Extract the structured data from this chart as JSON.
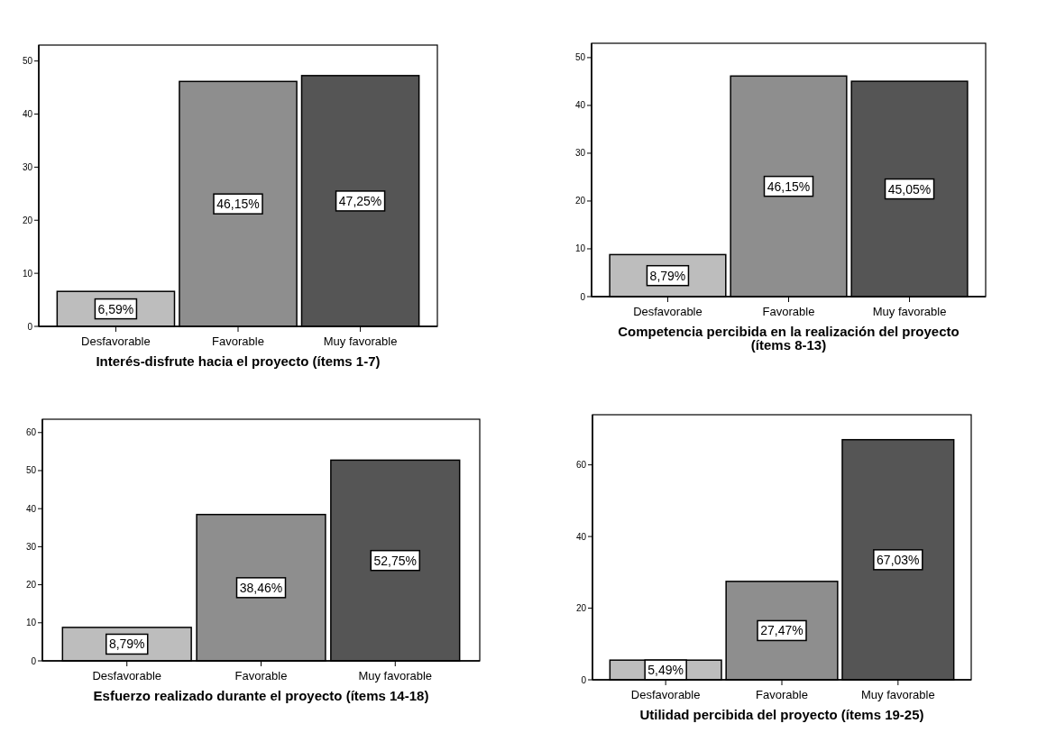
{
  "chart_data": [
    {
      "type": "bar",
      "xlabel": "Interés-disfrute hacia el proyecto (ítems 1-7)",
      "categories": [
        "Desfavorable",
        "Favorable",
        "Muy favorable"
      ],
      "values": [
        6.59,
        46.15,
        47.25
      ],
      "colors": [
        "#bdbdbd",
        "#8e8e8e",
        "#555555"
      ],
      "value_labels": [
        "6,59%",
        "46,15%",
        "47,25%"
      ],
      "ylim": [
        0,
        53
      ],
      "yticks": [
        0,
        10,
        20,
        30,
        40,
        50
      ]
    },
    {
      "type": "bar",
      "xlabel": "Competencia percibida en la realización del proyecto (ítems 8-13)",
      "categories": [
        "Desfavorable",
        "Favorable",
        "Muy favorable"
      ],
      "values": [
        8.79,
        46.15,
        45.05
      ],
      "colors": [
        "#bdbdbd",
        "#8e8e8e",
        "#555555"
      ],
      "value_labels": [
        "8,79%",
        "46,15%",
        "45,05%"
      ],
      "ylim": [
        0,
        53
      ],
      "yticks": [
        0,
        10,
        20,
        30,
        40,
        50
      ]
    },
    {
      "type": "bar",
      "xlabel": "Esfuerzo realizado durante el proyecto (ítems 14-18)",
      "categories": [
        "Desfavorable",
        "Favorable",
        "Muy favorable"
      ],
      "values": [
        8.79,
        38.46,
        52.75
      ],
      "colors": [
        "#bdbdbd",
        "#8e8e8e",
        "#555555"
      ],
      "value_labels": [
        "8,79%",
        "38,46%",
        "52,75%"
      ],
      "ylim": [
        0,
        63.5
      ],
      "yticks": [
        0,
        10,
        20,
        30,
        40,
        50,
        60
      ]
    },
    {
      "type": "bar",
      "xlabel": "Utilidad percibida del proyecto (ítems 19-25)",
      "categories": [
        "Desfavorable",
        "Favorable",
        "Muy favorable"
      ],
      "values": [
        5.49,
        27.47,
        67.03
      ],
      "colors": [
        "#bdbdbd",
        "#8e8e8e",
        "#555555"
      ],
      "value_labels": [
        "5,49%",
        "27,47%",
        "67,03%"
      ],
      "ylim": [
        0,
        74
      ],
      "yticks": [
        0,
        20,
        40,
        60
      ]
    }
  ]
}
